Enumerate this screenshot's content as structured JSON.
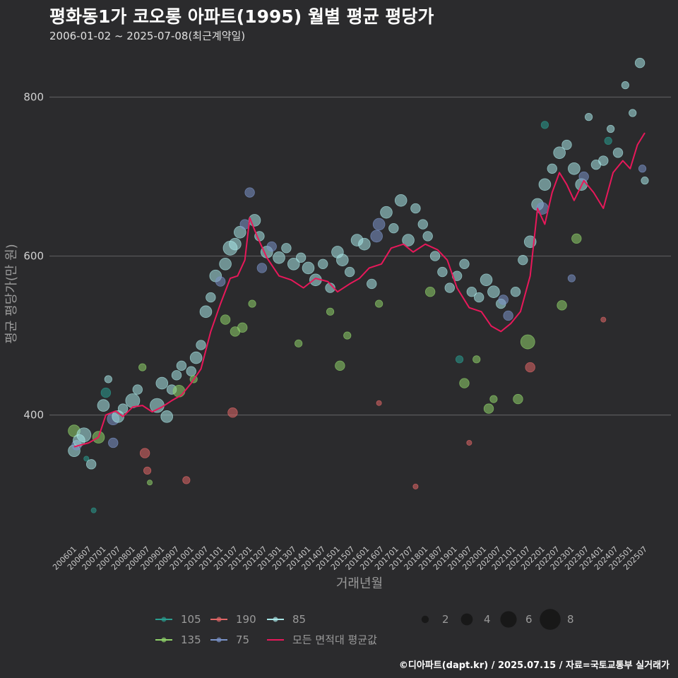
{
  "header": {
    "title": "평화동1가 코오롱 아파트(1995) 월별 평균 평당가",
    "subtitle": "2006-01-02 ~ 2025-07-08(최근계약일)"
  },
  "footer": {
    "credit": "©디아파트(dapt.kr) / 2025.07.15 / 자료=국토교통부 실거래가"
  },
  "chart_data": {
    "type": "scatter",
    "xlabel": "거래년월",
    "ylabel": "평균 평당가(만 원)",
    "x_ticks": [
      "200601",
      "200607",
      "200701",
      "200707",
      "200801",
      "200807",
      "200901",
      "200907",
      "201001",
      "201007",
      "201101",
      "201107",
      "201201",
      "201207",
      "201301",
      "201307",
      "201401",
      "201407",
      "201501",
      "201507",
      "201601",
      "201607",
      "201701",
      "201707",
      "201801",
      "201807",
      "201901",
      "201907",
      "202001",
      "202007",
      "202101",
      "202107",
      "202201",
      "202207",
      "202301",
      "202307",
      "202401",
      "202407",
      "202501",
      "202507"
    ],
    "y_ticks": [
      400,
      600,
      800
    ],
    "ylim": [
      245,
      860
    ],
    "grid": "horizontal",
    "colors": {
      "105": "#2a9d8f",
      "135": "#8fd16a",
      "190": "#e06666",
      "75": "#7b93c9",
      "85": "#a8e6e6",
      "avg": "#e8185a"
    },
    "legend": {
      "series": [
        {
          "key": "105",
          "label": "105"
        },
        {
          "key": "190",
          "label": "190"
        },
        {
          "key": "85",
          "label": "85"
        },
        {
          "key": "135",
          "label": "135"
        },
        {
          "key": "75",
          "label": "75"
        },
        {
          "key": "avg",
          "label": "모든 면적대 평균값"
        }
      ],
      "sizes": [
        2,
        4,
        6,
        8
      ],
      "placement": "bottom"
    },
    "avg_line": [
      [
        "2006-01",
        360
      ],
      [
        "2006-07",
        365
      ],
      [
        "2006-11",
        372
      ],
      [
        "2007-02",
        400
      ],
      [
        "2007-06",
        405
      ],
      [
        "2007-09",
        398
      ],
      [
        "2008-01",
        410
      ],
      [
        "2008-05",
        412
      ],
      [
        "2008-09",
        404
      ],
      [
        "2009-01",
        410
      ],
      [
        "2009-05",
        418
      ],
      [
        "2009-09",
        425
      ],
      [
        "2010-01",
        440
      ],
      [
        "2010-05",
        458
      ],
      [
        "2010-09",
        505
      ],
      [
        "2011-01",
        540
      ],
      [
        "2011-05",
        572
      ],
      [
        "2011-08",
        575
      ],
      [
        "2011-11",
        595
      ],
      [
        "2012-01",
        648
      ],
      [
        "2012-04",
        625
      ],
      [
        "2012-08",
        598
      ],
      [
        "2013-01",
        575
      ],
      [
        "2013-06",
        570
      ],
      [
        "2013-11",
        560
      ],
      [
        "2014-04",
        572
      ],
      [
        "2014-09",
        568
      ],
      [
        "2015-01",
        555
      ],
      [
        "2015-06",
        565
      ],
      [
        "2015-10",
        572
      ],
      [
        "2016-02",
        585
      ],
      [
        "2016-07",
        590
      ],
      [
        "2016-11",
        610
      ],
      [
        "2017-04",
        615
      ],
      [
        "2017-08",
        605
      ],
      [
        "2018-01",
        615
      ],
      [
        "2018-06",
        608
      ],
      [
        "2018-10",
        595
      ],
      [
        "2019-02",
        560
      ],
      [
        "2019-07",
        535
      ],
      [
        "2019-12",
        530
      ],
      [
        "2020-04",
        512
      ],
      [
        "2020-08",
        505
      ],
      [
        "2020-12",
        515
      ],
      [
        "2021-04",
        530
      ],
      [
        "2021-08",
        575
      ],
      [
        "2021-11",
        660
      ],
      [
        "2022-02",
        640
      ],
      [
        "2022-05",
        680
      ],
      [
        "2022-08",
        705
      ],
      [
        "2022-11",
        690
      ],
      [
        "2023-02",
        670
      ],
      [
        "2023-06",
        695
      ],
      [
        "2023-10",
        680
      ],
      [
        "2024-02",
        660
      ],
      [
        "2024-06",
        705
      ],
      [
        "2024-10",
        720
      ],
      [
        "2025-01",
        710
      ],
      [
        "2025-04",
        740
      ],
      [
        "2025-07",
        755
      ]
    ],
    "points": [
      [
        "2006-01",
        380,
        "135",
        4
      ],
      [
        "2006-01",
        355,
        "85",
        4
      ],
      [
        "2006-02",
        362,
        "75",
        3
      ],
      [
        "2006-03",
        368,
        "85",
        4
      ],
      [
        "2006-05",
        375,
        "85",
        5
      ],
      [
        "2006-06",
        345,
        "105",
        1
      ],
      [
        "2006-08",
        338,
        "85",
        3
      ],
      [
        "2006-09",
        280,
        "105",
        1
      ],
      [
        "2006-11",
        372,
        "135",
        4
      ],
      [
        "2007-01",
        412,
        "85",
        4
      ],
      [
        "2007-02",
        428,
        "105",
        3
      ],
      [
        "2007-03",
        445,
        "85",
        2
      ],
      [
        "2007-05",
        395,
        "75",
        4
      ],
      [
        "2007-07",
        398,
        "85",
        4
      ],
      [
        "2007-09",
        408,
        "85",
        3
      ],
      [
        "2008-01",
        418,
        "85",
        5
      ],
      [
        "2008-03",
        432,
        "85",
        3
      ],
      [
        "2008-05",
        460,
        "135",
        2
      ],
      [
        "2008-06",
        352,
        "190",
        3
      ],
      [
        "2008-07",
        330,
        "190",
        2
      ],
      [
        "2008-08",
        315,
        "135",
        1
      ],
      [
        "2008-11",
        412,
        "85",
        5
      ],
      [
        "2009-01",
        440,
        "85",
        4
      ],
      [
        "2009-03",
        398,
        "85",
        4
      ],
      [
        "2009-05",
        432,
        "85",
        3
      ],
      [
        "2009-07",
        450,
        "85",
        3
      ],
      [
        "2009-09",
        462,
        "85",
        3
      ],
      [
        "2009-11",
        318,
        "190",
        2
      ],
      [
        "2010-01",
        455,
        "85",
        3
      ],
      [
        "2010-03",
        472,
        "85",
        4
      ],
      [
        "2010-05",
        488,
        "85",
        3
      ],
      [
        "2010-07",
        530,
        "85",
        4
      ],
      [
        "2010-09",
        548,
        "85",
        3
      ],
      [
        "2010-11",
        575,
        "85",
        4
      ],
      [
        "2011-01",
        568,
        "75",
        3
      ],
      [
        "2011-03",
        590,
        "85",
        4
      ],
      [
        "2011-05",
        610,
        "85",
        5
      ],
      [
        "2011-07",
        615,
        "85",
        4
      ],
      [
        "2011-09",
        630,
        "85",
        4
      ],
      [
        "2011-11",
        640,
        "75",
        3
      ],
      [
        "2012-01",
        680,
        "75",
        3
      ],
      [
        "2012-03",
        645,
        "85",
        4
      ],
      [
        "2012-05",
        625,
        "85",
        3
      ],
      [
        "2012-08",
        605,
        "85",
        4
      ],
      [
        "2012-10",
        612,
        "75",
        3
      ],
      [
        "2013-01",
        598,
        "85",
        4
      ],
      [
        "2013-04",
        610,
        "85",
        3
      ],
      [
        "2013-07",
        590,
        "85",
        4
      ],
      [
        "2013-10",
        598,
        "85",
        3
      ],
      [
        "2014-01",
        585,
        "85",
        4
      ],
      [
        "2014-04",
        570,
        "85",
        4
      ],
      [
        "2014-07",
        590,
        "85",
        3
      ],
      [
        "2014-10",
        560,
        "85",
        3
      ],
      [
        "2015-01",
        605,
        "85",
        4
      ],
      [
        "2015-03",
        595,
        "85",
        4
      ],
      [
        "2015-06",
        580,
        "85",
        3
      ],
      [
        "2015-09",
        620,
        "85",
        4
      ],
      [
        "2015-12",
        615,
        "85",
        4
      ],
      [
        "2016-03",
        565,
        "85",
        3
      ],
      [
        "2016-06",
        640,
        "75",
        4
      ],
      [
        "2016-09",
        655,
        "85",
        4
      ],
      [
        "2016-12",
        635,
        "85",
        3
      ],
      [
        "2017-03",
        670,
        "85",
        4
      ],
      [
        "2017-06",
        620,
        "85",
        4
      ],
      [
        "2017-09",
        660,
        "85",
        3
      ],
      [
        "2017-12",
        640,
        "85",
        3
      ],
      [
        "2018-02",
        625,
        "85",
        3
      ],
      [
        "2018-05",
        600,
        "85",
        3
      ],
      [
        "2018-08",
        580,
        "85",
        3
      ],
      [
        "2018-11",
        560,
        "85",
        3
      ],
      [
        "2019-02",
        575,
        "85",
        3
      ],
      [
        "2019-05",
        590,
        "85",
        3
      ],
      [
        "2019-08",
        555,
        "85",
        3
      ],
      [
        "2019-11",
        548,
        "85",
        3
      ],
      [
        "2020-02",
        570,
        "85",
        4
      ],
      [
        "2020-05",
        555,
        "85",
        4
      ],
      [
        "2020-08",
        540,
        "85",
        3
      ],
      [
        "2020-11",
        525,
        "75",
        3
      ],
      [
        "2021-02",
        555,
        "85",
        3
      ],
      [
        "2021-05",
        595,
        "85",
        3
      ],
      [
        "2021-08",
        618,
        "85",
        4
      ],
      [
        "2021-11",
        665,
        "85",
        4
      ],
      [
        "2022-02",
        690,
        "85",
        4
      ],
      [
        "2022-05",
        710,
        "85",
        3
      ],
      [
        "2022-08",
        730,
        "85",
        4
      ],
      [
        "2022-11",
        740,
        "85",
        3
      ],
      [
        "2023-02",
        710,
        "85",
        4
      ],
      [
        "2023-05",
        690,
        "85",
        4
      ],
      [
        "2023-08",
        775,
        "85",
        2
      ],
      [
        "2023-11",
        715,
        "85",
        3
      ],
      [
        "2024-02",
        720,
        "85",
        3
      ],
      [
        "2024-05",
        760,
        "85",
        2
      ],
      [
        "2024-08",
        730,
        "85",
        3
      ],
      [
        "2024-11",
        815,
        "85",
        2
      ],
      [
        "2025-02",
        780,
        "85",
        2
      ],
      [
        "2025-05",
        843,
        "85",
        3
      ],
      [
        "2025-06",
        710,
        "75",
        2
      ],
      [
        "2025-07",
        695,
        "85",
        2
      ],
      [
        "2009-08",
        430,
        "135",
        4
      ],
      [
        "2010-02",
        445,
        "135",
        2
      ],
      [
        "2011-03",
        520,
        "135",
        3
      ],
      [
        "2011-07",
        505,
        "135",
        3
      ],
      [
        "2011-10",
        510,
        "135",
        3
      ],
      [
        "2012-02",
        540,
        "135",
        2
      ],
      [
        "2013-09",
        490,
        "135",
        2
      ],
      [
        "2014-10",
        530,
        "135",
        2
      ],
      [
        "2015-02",
        462,
        "135",
        3
      ],
      [
        "2015-05",
        500,
        "135",
        2
      ],
      [
        "2016-06",
        540,
        "135",
        2
      ],
      [
        "2018-03",
        555,
        "135",
        3
      ],
      [
        "2019-05",
        440,
        "135",
        3
      ],
      [
        "2019-10",
        470,
        "135",
        2
      ],
      [
        "2020-03",
        408,
        "135",
        3
      ],
      [
        "2020-05",
        420,
        "135",
        2
      ],
      [
        "2021-03",
        420,
        "135",
        3
      ],
      [
        "2021-07",
        492,
        "135",
        5
      ],
      [
        "2022-09",
        538,
        "135",
        3
      ],
      [
        "2023-03",
        622,
        "135",
        3
      ],
      [
        "2011-06",
        403,
        "190",
        3
      ],
      [
        "2017-09",
        310,
        "190",
        1
      ],
      [
        "2016-06",
        415,
        "190",
        1
      ],
      [
        "2019-07",
        365,
        "190",
        1
      ],
      [
        "2021-08",
        460,
        "190",
        3
      ],
      [
        "2024-02",
        520,
        "190",
        1
      ],
      [
        "2007-05",
        365,
        "75",
        3
      ],
      [
        "2012-06",
        585,
        "75",
        3
      ],
      [
        "2016-05",
        625,
        "75",
        4
      ],
      [
        "2020-09",
        545,
        "75",
        3
      ],
      [
        "2022-01",
        660,
        "75",
        4
      ],
      [
        "2023-06",
        700,
        "75",
        3
      ],
      [
        "2024-04",
        745,
        "105",
        2
      ],
      [
        "2022-02",
        765,
        "105",
        2
      ],
      [
        "2023-01",
        572,
        "75",
        2
      ],
      [
        "2019-03",
        470,
        "105",
        2
      ]
    ]
  }
}
